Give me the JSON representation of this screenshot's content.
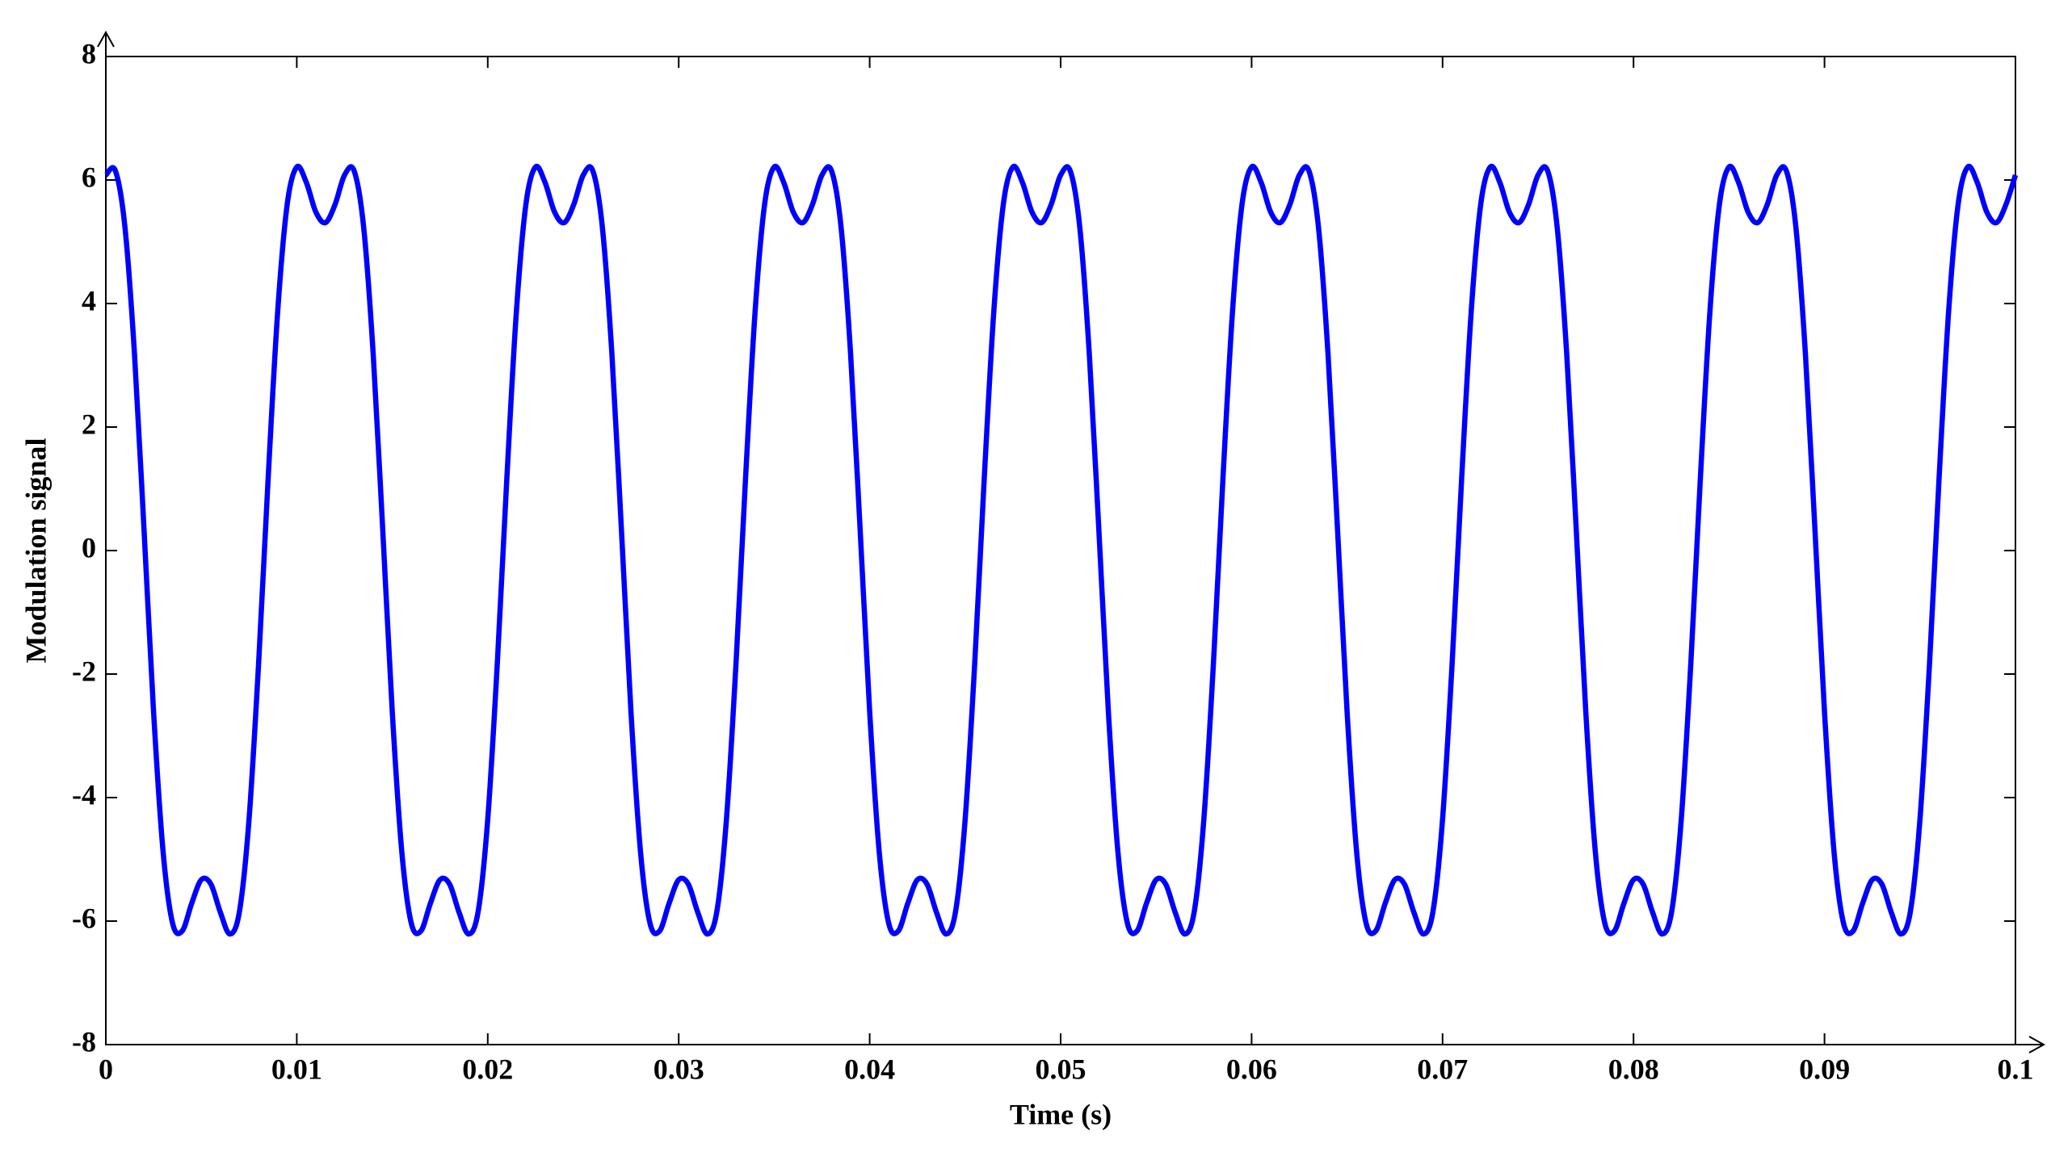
{
  "chart_data": {
    "type": "line",
    "xlabel": "Time (s)",
    "ylabel": "Modulation signal",
    "xlim": [
      0,
      0.1
    ],
    "ylim": [
      -8,
      8
    ],
    "xticks": [
      0,
      0.01,
      0.02,
      0.03,
      0.04,
      0.05,
      0.06,
      0.07,
      0.08,
      0.09,
      0.1
    ],
    "yticks": [
      -8,
      -6,
      -4,
      -2,
      0,
      2,
      4,
      6,
      8
    ],
    "grid": false,
    "x": [
      0,
      0.0005,
      0.001,
      0.0015,
      0.002,
      0.0025,
      0.003,
      0.0035,
      0.004,
      0.0045,
      0.005,
      0.0055,
      0.006,
      0.0065,
      0.007,
      0.0075,
      0.008,
      0.0085,
      0.009,
      0.0095,
      0.01,
      0.0105,
      0.011,
      0.0115,
      0.012,
      0.0125,
      0.013,
      0.0135,
      0.014,
      0.0145,
      0.015,
      0.0155,
      0.016,
      0.0165,
      0.017,
      0.0175,
      0.018,
      0.0185,
      0.019,
      0.0195,
      0.02,
      0.0205,
      0.021,
      0.0215,
      0.022,
      0.0225,
      0.023,
      0.0235,
      0.024,
      0.0245,
      0.025,
      0.0255,
      0.026,
      0.0265,
      0.027,
      0.0275,
      0.028,
      0.0285,
      0.029,
      0.0295,
      0.03,
      0.0305,
      0.031,
      0.0315,
      0.032,
      0.0325,
      0.033,
      0.0335,
      0.034,
      0.0345,
      0.035,
      0.0355,
      0.036,
      0.0365,
      0.037,
      0.0375,
      0.038,
      0.0385,
      0.039,
      0.0395,
      0.04,
      0.0405,
      0.041,
      0.0415,
      0.042,
      0.0425,
      0.043,
      0.0435,
      0.044,
      0.0445,
      0.045,
      0.0455,
      0.046,
      0.0465,
      0.047,
      0.0475,
      0.048,
      0.0485,
      0.049,
      0.0495,
      0.05,
      0.0505,
      0.051,
      0.0515,
      0.052,
      0.0525,
      0.053,
      0.0535,
      0.054,
      0.0545,
      0.055,
      0.0555,
      0.056,
      0.0565,
      0.057,
      0.0575,
      0.058,
      0.0585,
      0.059,
      0.0595,
      0.06,
      0.0605,
      0.061,
      0.0615,
      0.062,
      0.0625,
      0.063,
      0.0635,
      0.064,
      0.0645,
      0.065,
      0.0655,
      0.066,
      0.0665,
      0.067,
      0.0675,
      0.068,
      0.0685,
      0.069,
      0.0695,
      0.07,
      0.0705,
      0.071,
      0.0715,
      0.072,
      0.0725,
      0.073,
      0.0735,
      0.074,
      0.0745,
      0.075,
      0.0755,
      0.076,
      0.0765,
      0.077,
      0.0775,
      0.078,
      0.0785,
      0.079,
      0.0795,
      0.08,
      0.0805,
      0.081,
      0.0815,
      0.082,
      0.0825,
      0.083,
      0.0835,
      0.084,
      0.0845,
      0.085,
      0.0855,
      0.086,
      0.0865,
      0.087,
      0.0875,
      0.088,
      0.0885,
      0.089,
      0.0895,
      0.09,
      0.0905,
      0.091,
      0.0915,
      0.092,
      0.0925,
      0.093,
      0.0935,
      0.094,
      0.0945,
      0.095,
      0.0955,
      0.096,
      0.0965,
      0.097,
      0.0975,
      0.098,
      0.0985,
      0.099,
      0.0995,
      0.1
    ],
    "series": [
      {
        "color": "#0000ff",
        "values": [
          6.08,
          6.15,
          5.24,
          3.19,
          0.34,
          -2.61,
          -4.88,
          -6.04,
          -6.16,
          -5.71,
          -5.33,
          -5.4,
          -5.86,
          -6.21,
          -5.84,
          -4.35,
          -1.83,
          1.17,
          3.87,
          5.61,
          6.21,
          5.96,
          5.48,
          5.31,
          5.6,
          6.08,
          6.15,
          5.24,
          3.19,
          0.34,
          -2.61,
          -4.88,
          -6.04,
          -6.16,
          -5.71,
          -5.33,
          -5.4,
          -5.86,
          -6.21,
          -5.84,
          -4.35,
          -1.83,
          1.17,
          3.87,
          5.61,
          6.21,
          5.96,
          5.48,
          5.31,
          5.6,
          6.08,
          6.15,
          5.24,
          3.19,
          0.34,
          -2.61,
          -4.88,
          -6.04,
          -6.16,
          -5.71,
          -5.33,
          -5.4,
          -5.86,
          -6.21,
          -5.84,
          -4.35,
          -1.83,
          1.17,
          3.87,
          5.61,
          6.21,
          5.96,
          5.48,
          5.31,
          5.6,
          6.08,
          6.15,
          5.24,
          3.19,
          0.34,
          -2.61,
          -4.88,
          -6.04,
          -6.16,
          -5.71,
          -5.33,
          -5.4,
          -5.86,
          -6.21,
          -5.84,
          -4.35,
          -1.83,
          1.17,
          3.87,
          5.61,
          6.21,
          5.96,
          5.48,
          5.31,
          5.6,
          6.08,
          6.15,
          5.24,
          3.19,
          0.34,
          -2.61,
          -4.88,
          -6.04,
          -6.16,
          -5.71,
          -5.33,
          -5.4,
          -5.86,
          -6.21,
          -5.84,
          -4.35,
          -1.83,
          1.17,
          3.87,
          5.61,
          6.21,
          5.96,
          5.48,
          5.31,
          5.6,
          6.08,
          6.15,
          5.24,
          3.19,
          0.34,
          -2.61,
          -4.88,
          -6.04,
          -6.16,
          -5.71,
          -5.33,
          -5.4,
          -5.86,
          -6.21,
          -5.84,
          -4.35,
          -1.83,
          1.17,
          3.87,
          5.61,
          6.21,
          5.96,
          5.48,
          5.31,
          5.6,
          6.08,
          6.15,
          5.24,
          3.19,
          0.34,
          -2.61,
          -4.88,
          -6.04,
          -6.16,
          -5.71,
          -5.33,
          -5.4,
          -5.86,
          -6.21,
          -5.84,
          -4.35,
          -1.83,
          1.17,
          3.87,
          5.61,
          6.21,
          5.96,
          5.48,
          5.31,
          5.6,
          6.08,
          6.15,
          5.24,
          3.19,
          0.34,
          -2.61,
          -4.88,
          -6.04,
          -6.16,
          -5.71,
          -5.33,
          -5.4,
          -5.86,
          -6.21,
          -5.84,
          -4.35,
          -1.83,
          1.17,
          3.87,
          5.61,
          6.21,
          5.96,
          5.48,
          5.31,
          5.6,
          6.08
        ]
      }
    ]
  }
}
